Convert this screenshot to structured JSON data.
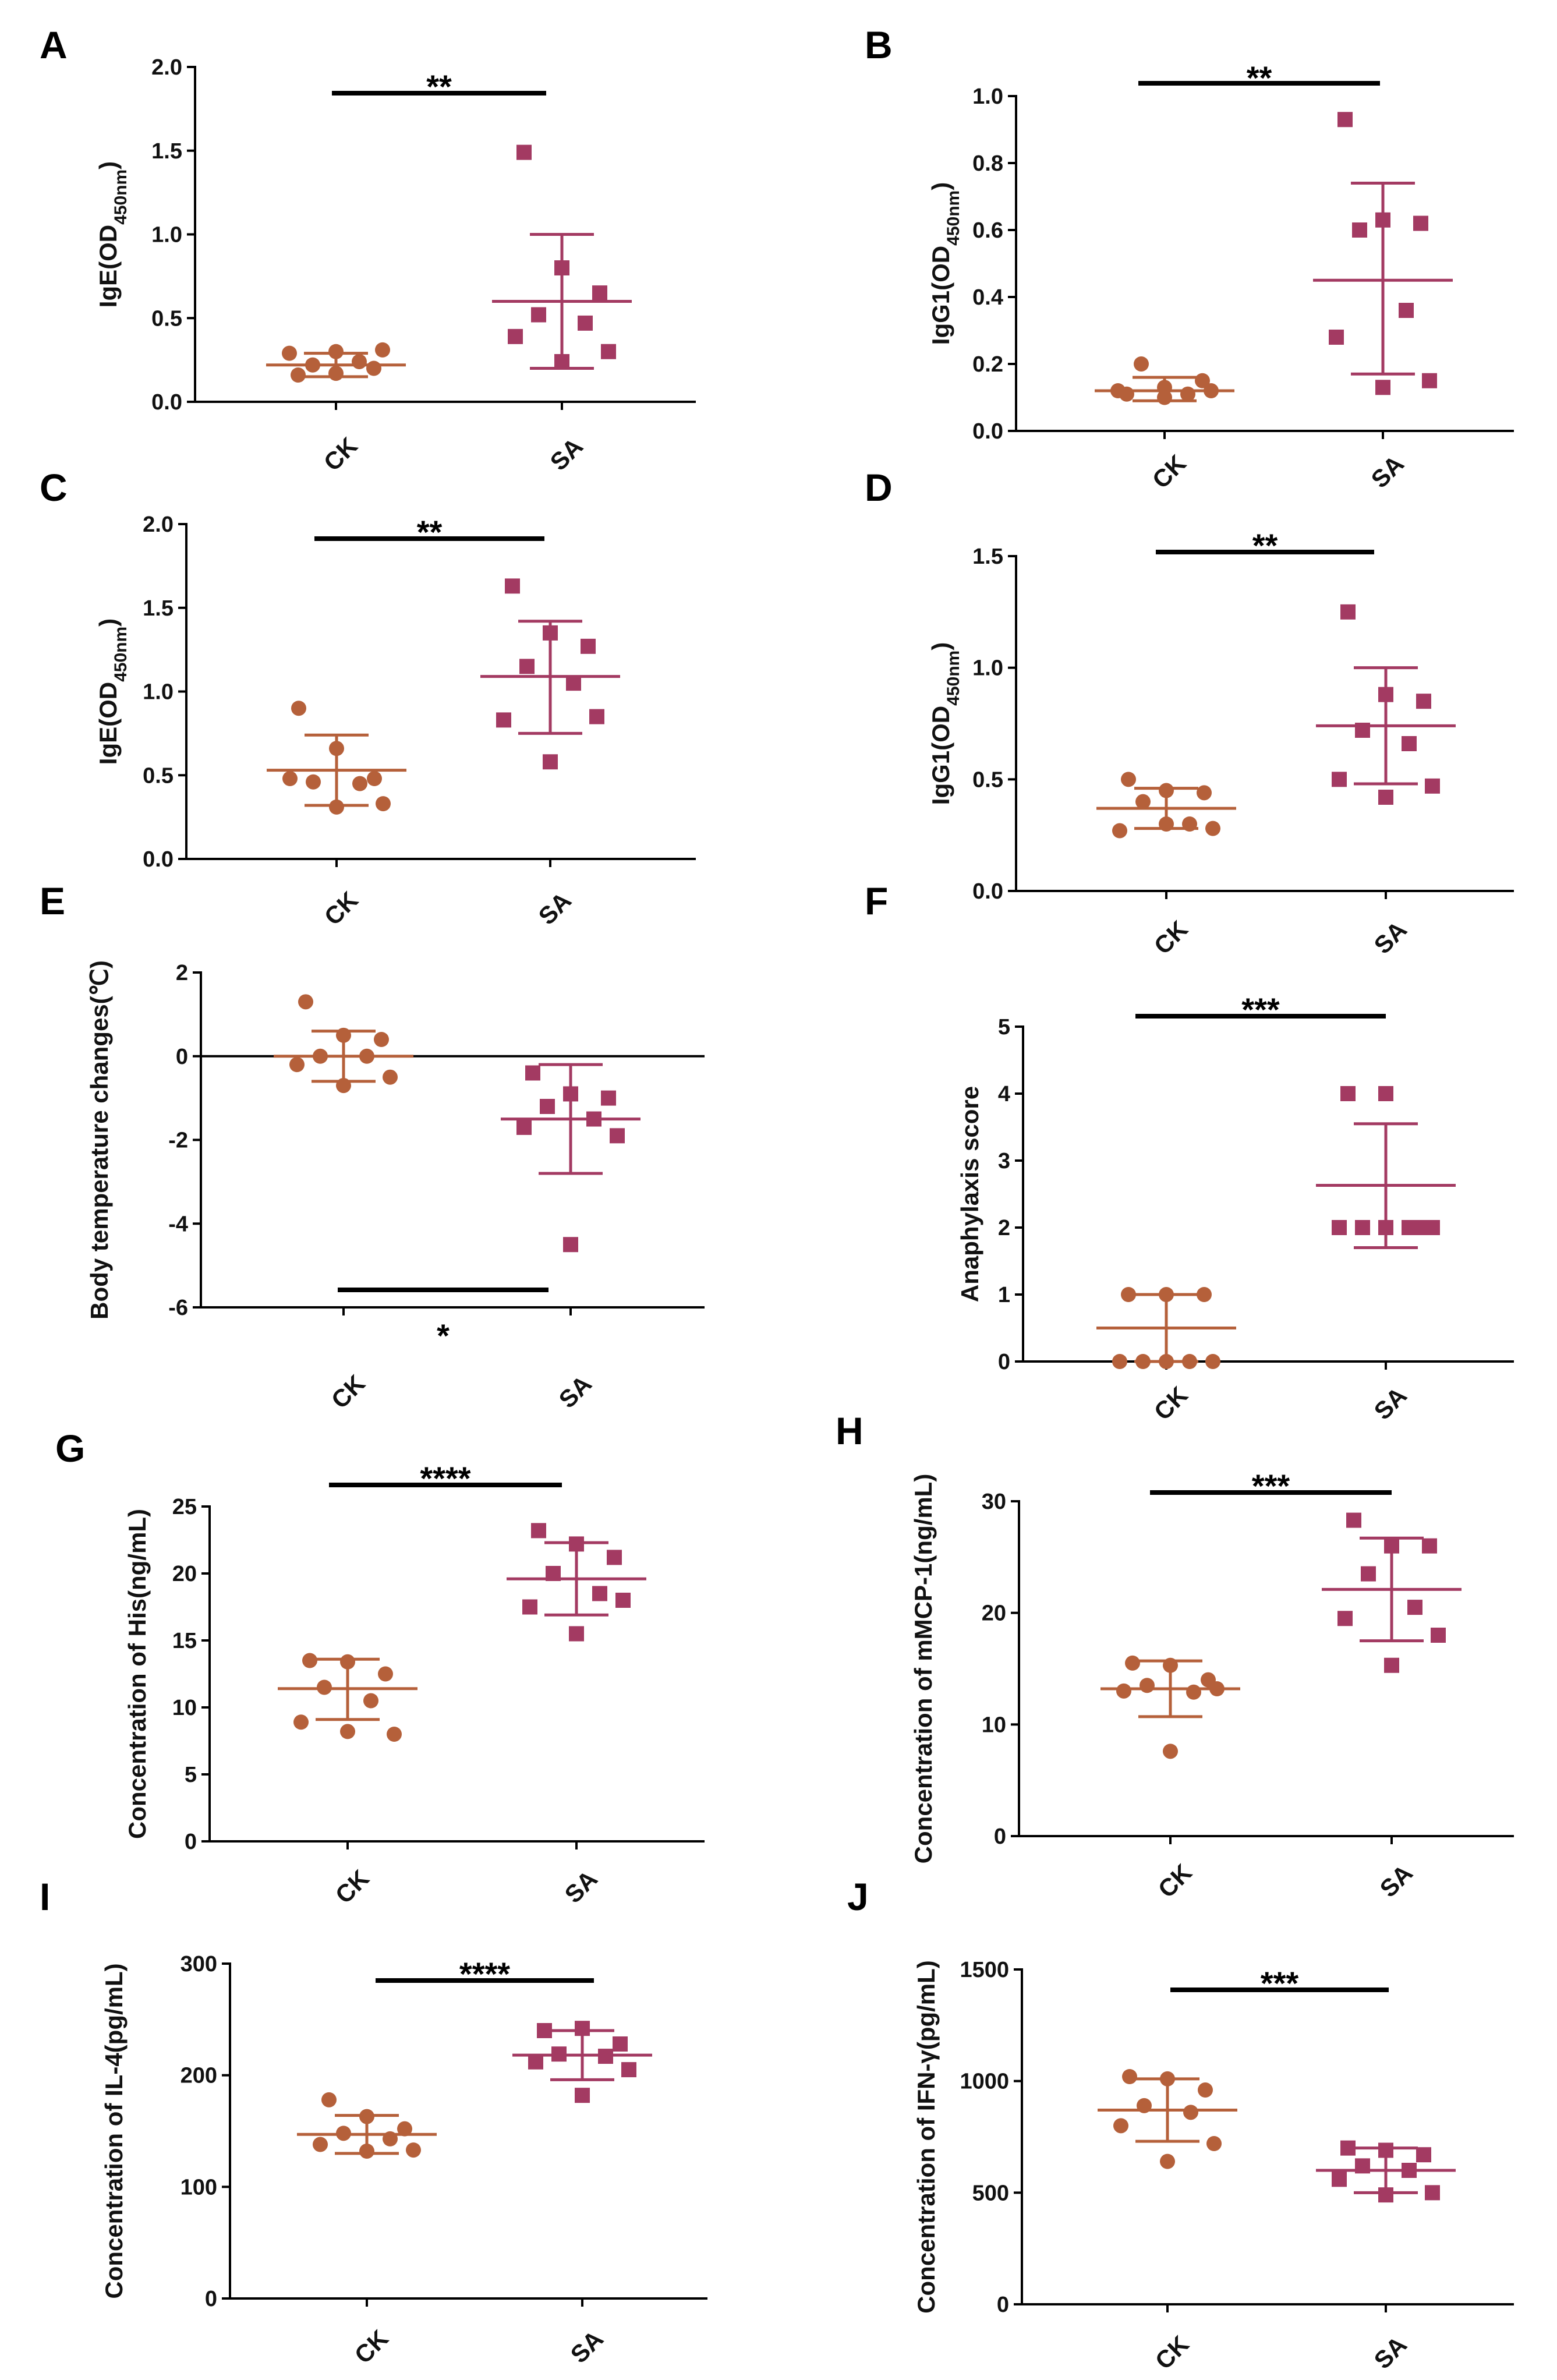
{
  "figure": {
    "colors": {
      "CK": "#B5603A",
      "SA": "#A33A62",
      "axis": "#000000"
    }
  },
  "chart_data": [
    {
      "letter": "A",
      "type": "scatter",
      "ylabel_main": "IgE(OD",
      "ylabel_sub": "450nm",
      "ylabel_end": ")",
      "categories": [
        "CK",
        "SA"
      ],
      "ylim": [
        0.0,
        2.0
      ],
      "yticks": [
        0.0,
        0.5,
        1.0,
        1.5,
        2.0
      ],
      "ytick_labels": [
        "0.0",
        "0.5",
        "1.0",
        "1.5",
        "2.0"
      ],
      "series": [
        {
          "name": "CK",
          "values": [
            0.16,
            0.17,
            0.2,
            0.22,
            0.24,
            0.29,
            0.31,
            0.3
          ],
          "mean": 0.22,
          "sd_low": 0.15,
          "sd_high": 0.29
        },
        {
          "name": "SA",
          "values": [
            1.49,
            0.8,
            0.65,
            0.52,
            0.47,
            0.39,
            0.3,
            0.24
          ],
          "mean": 0.6,
          "sd_low": 0.2,
          "sd_high": 1.0
        }
      ],
      "significance": "**"
    },
    {
      "letter": "B",
      "type": "scatter",
      "ylabel_main": "IgG1(OD",
      "ylabel_sub": "450nm",
      "ylabel_end": ")",
      "categories": [
        "CK",
        "SA"
      ],
      "ylim": [
        0.0,
        1.0
      ],
      "yticks": [
        0.0,
        0.2,
        0.4,
        0.6,
        0.8,
        1.0
      ],
      "ytick_labels": [
        "0.0",
        "0.2",
        "0.4",
        "0.6",
        "0.8",
        "1.0"
      ],
      "series": [
        {
          "name": "CK",
          "values": [
            0.11,
            0.13,
            0.15,
            0.2,
            0.11,
            0.12,
            0.12,
            0.1
          ],
          "mean": 0.12,
          "sd_low": 0.09,
          "sd_high": 0.16
        },
        {
          "name": "SA",
          "values": [
            0.93,
            0.63,
            0.62,
            0.6,
            0.36,
            0.28,
            0.15,
            0.13
          ],
          "mean": 0.45,
          "sd_low": 0.17,
          "sd_high": 0.74
        }
      ],
      "significance": "**"
    },
    {
      "letter": "C",
      "type": "scatter",
      "ylabel_main": "IgE(OD",
      "ylabel_sub": "450nm",
      "ylabel_end": ")",
      "categories": [
        "CK",
        "SA"
      ],
      "ylim": [
        0.0,
        2.0
      ],
      "yticks": [
        0.0,
        0.5,
        1.0,
        1.5,
        2.0
      ],
      "ytick_labels": [
        "0.0",
        "0.5",
        "1.0",
        "1.5",
        "2.0"
      ],
      "series": [
        {
          "name": "CK",
          "values": [
            0.9,
            0.66,
            0.48,
            0.46,
            0.45,
            0.48,
            0.33,
            0.31
          ],
          "mean": 0.53,
          "sd_low": 0.32,
          "sd_high": 0.74
        },
        {
          "name": "SA",
          "values": [
            1.63,
            1.35,
            1.27,
            1.15,
            1.05,
            0.83,
            0.85,
            0.58
          ],
          "mean": 1.09,
          "sd_low": 0.75,
          "sd_high": 1.42
        }
      ],
      "significance": "**"
    },
    {
      "letter": "D",
      "type": "scatter",
      "ylabel_main": "IgG1(OD",
      "ylabel_sub": "450nm",
      "ylabel_end": ")",
      "categories": [
        "CK",
        "SA"
      ],
      "ylim": [
        0.0,
        1.5
      ],
      "yticks": [
        0.0,
        0.5,
        1.0,
        1.5
      ],
      "ytick_labels": [
        "0.0",
        "0.5",
        "1.0",
        "1.5"
      ],
      "series": [
        {
          "name": "CK",
          "values": [
            0.5,
            0.45,
            0.44,
            0.4,
            0.3,
            0.27,
            0.28,
            0.3
          ],
          "mean": 0.37,
          "sd_low": 0.28,
          "sd_high": 0.46
        },
        {
          "name": "SA",
          "values": [
            1.25,
            0.88,
            0.85,
            0.72,
            0.66,
            0.5,
            0.47,
            0.42
          ],
          "mean": 0.74,
          "sd_low": 0.48,
          "sd_high": 1.0
        }
      ],
      "significance": "**"
    },
    {
      "letter": "E",
      "type": "scatter",
      "ylabel_main": "Body temperature changes(℃)",
      "ylabel_sub": "",
      "ylabel_end": "",
      "categories": [
        "CK",
        "SA"
      ],
      "ylim": [
        -6,
        2
      ],
      "yticks": [
        -6,
        -4,
        -2,
        0,
        2
      ],
      "ytick_labels": [
        "-6",
        "-4",
        "-2",
        "0",
        "2"
      ],
      "series": [
        {
          "name": "CK",
          "values": [
            1.3,
            0.5,
            0.4,
            0.0,
            0.0,
            -0.2,
            -0.5,
            -0.7
          ],
          "mean": 0.0,
          "sd_low": -0.6,
          "sd_high": 0.6
        },
        {
          "name": "SA",
          "values": [
            -0.4,
            -0.9,
            -1.0,
            -1.2,
            -1.5,
            -1.7,
            -1.9,
            -4.5
          ],
          "mean": -1.5,
          "sd_low": -2.8,
          "sd_high": -0.2
        }
      ],
      "significance": "*"
    },
    {
      "letter": "F",
      "type": "scatter",
      "ylabel_main": "Anaphylaxis score",
      "ylabel_sub": "",
      "ylabel_end": "",
      "categories": [
        "CK",
        "SA"
      ],
      "ylim": [
        0,
        5
      ],
      "yticks": [
        0,
        1,
        2,
        3,
        4,
        5
      ],
      "ytick_labels": [
        "0",
        "1",
        "2",
        "3",
        "4",
        "5"
      ],
      "series": [
        {
          "name": "CK",
          "values": [
            1,
            1,
            1,
            0,
            0,
            0,
            0,
            0
          ],
          "mean": 0.5,
          "sd_low": 0.0,
          "sd_high": 1.0
        },
        {
          "name": "SA",
          "values": [
            4,
            4,
            2,
            2,
            2,
            2,
            2,
            2
          ],
          "mean": 2.63,
          "sd_low": 1.7,
          "sd_high": 3.55
        },
        {
          "name": "",
          "values": []
        }
      ],
      "significance": "***"
    },
    {
      "letter": "G",
      "type": "scatter",
      "ylabel_main": "Concentration of His(ng/mL)",
      "ylabel_sub": "",
      "ylabel_end": "",
      "categories": [
        "CK",
        "SA"
      ],
      "ylim": [
        0,
        25
      ],
      "yticks": [
        0,
        5,
        10,
        15,
        20,
        25
      ],
      "ytick_labels": [
        "0",
        "5",
        "10",
        "15",
        "20",
        "25"
      ],
      "series": [
        {
          "name": "CK",
          "values": [
            13.5,
            13.4,
            12.5,
            11.5,
            10.5,
            8.9,
            8.0,
            8.2
          ],
          "mean": 11.4,
          "sd_low": 9.1,
          "sd_high": 13.6
        },
        {
          "name": "SA",
          "values": [
            23.2,
            22.2,
            21.2,
            20.0,
            18.5,
            17.5,
            18.0,
            15.5
          ],
          "mean": 19.6,
          "sd_low": 16.9,
          "sd_high": 22.3
        }
      ],
      "significance": "****"
    },
    {
      "letter": "H",
      "type": "scatter",
      "ylabel_main": "Concentration of mMCP-1(ng/mL)",
      "ylabel_sub": "",
      "ylabel_end": "",
      "categories": [
        "CK",
        "SA"
      ],
      "ylim": [
        0,
        30
      ],
      "yticks": [
        0,
        10,
        20,
        30
      ],
      "ytick_labels": [
        "0",
        "10",
        "20",
        "30"
      ],
      "series": [
        {
          "name": "CK",
          "values": [
            15.5,
            15.3,
            14.0,
            13.5,
            12.9,
            13.0,
            13.2,
            7.6
          ],
          "mean": 13.2,
          "sd_low": 10.7,
          "sd_high": 15.7
        },
        {
          "name": "SA",
          "values": [
            28.3,
            26.0,
            26.0,
            23.5,
            20.5,
            19.5,
            18.0,
            15.3
          ],
          "mean": 22.1,
          "sd_low": 17.5,
          "sd_high": 26.7
        }
      ],
      "significance": "***"
    },
    {
      "letter": "I",
      "type": "scatter",
      "ylabel_main": "Concentration of IL-4(pg/mL)",
      "ylabel_sub": "",
      "ylabel_end": "",
      "categories": [
        "CK",
        "SA"
      ],
      "ylim": [
        0,
        300
      ],
      "yticks": [
        0,
        100,
        200,
        300
      ],
      "ytick_labels": [
        "0",
        "100",
        "200",
        "300"
      ],
      "series": [
        {
          "name": "CK",
          "values": [
            178,
            163,
            152,
            148,
            143,
            138,
            133,
            132
          ],
          "mean": 147,
          "sd_low": 130,
          "sd_high": 164
        },
        {
          "name": "SA",
          "values": [
            240,
            242,
            228,
            219,
            217,
            212,
            205,
            182
          ],
          "mean": 218,
          "sd_low": 196,
          "sd_high": 240
        }
      ],
      "significance": "****"
    },
    {
      "letter": "J",
      "type": "scatter",
      "ylabel_main": "Concentration of IFN-γ(pg/mL)",
      "ylabel_sub": "",
      "ylabel_end": "",
      "categories": [
        "CK",
        "SA"
      ],
      "ylim": [
        0,
        1500
      ],
      "yticks": [
        0,
        500,
        1000,
        1500
      ],
      "ytick_labels": [
        "0",
        "500",
        "1000",
        "1500"
      ],
      "series": [
        {
          "name": "CK",
          "values": [
            1020,
            1010,
            960,
            890,
            860,
            800,
            720,
            640
          ],
          "mean": 870,
          "sd_low": 730,
          "sd_high": 1010
        },
        {
          "name": "SA",
          "values": [
            700,
            690,
            670,
            620,
            600,
            560,
            500,
            490
          ],
          "mean": 600,
          "sd_low": 500,
          "sd_high": 700
        }
      ],
      "significance": "***"
    }
  ]
}
